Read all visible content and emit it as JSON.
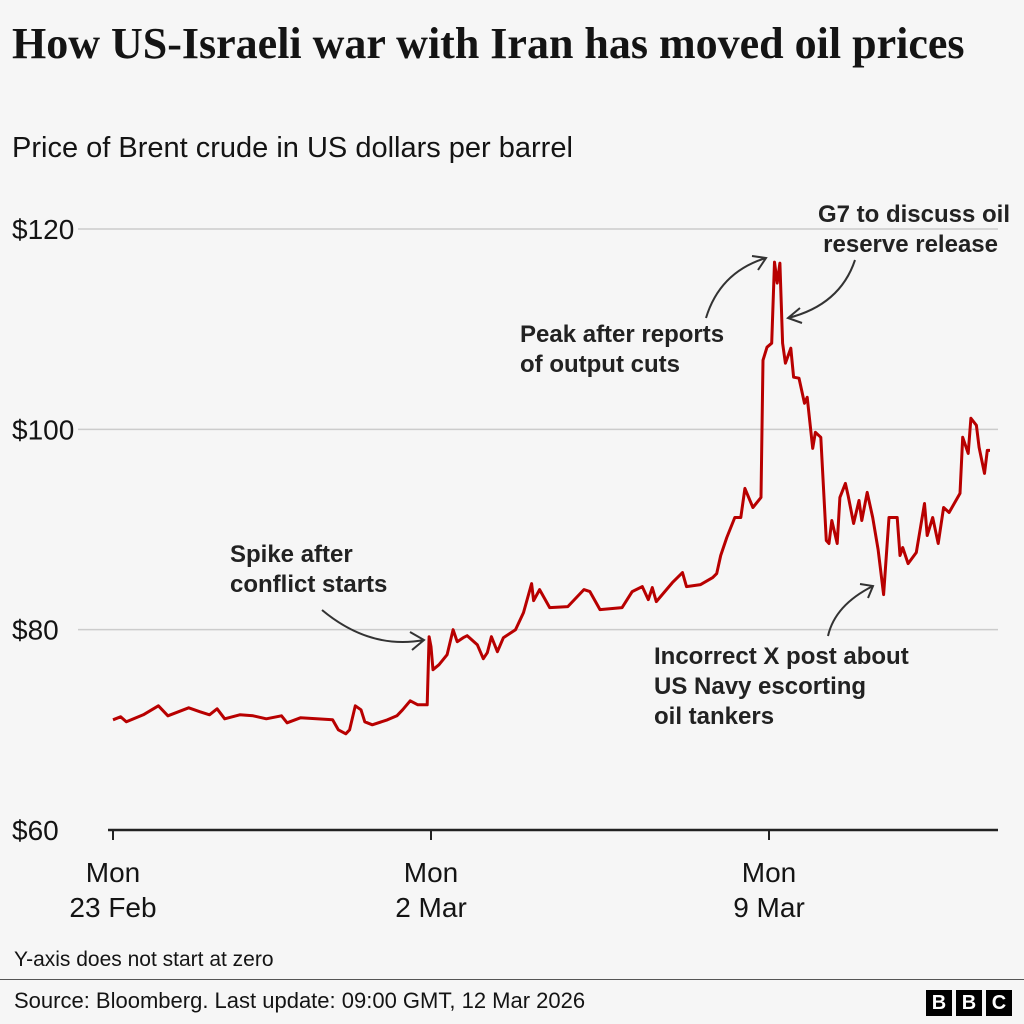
{
  "title": "How US-Israeli war with Iran has moved oil prices",
  "subtitle": "Price of Brent crude in US dollars per barrel",
  "note": "Y-axis does not start at zero",
  "source": "Source: Bloomberg. Last update: 09:00 GMT, 12 Mar 2026",
  "logo": "BBC",
  "colors": {
    "line": "#b80000",
    "grid": "#cccccc",
    "text": "#141414",
    "background": "#f6f6f6"
  },
  "chart_data": {
    "type": "line",
    "title": "How US-Israeli war with Iran has moved oil prices",
    "ylabel": "Price of Brent crude in US dollars per barrel",
    "ylim": [
      60,
      120
    ],
    "grid": true,
    "yticks": [
      {
        "value": 120,
        "label": "$120"
      },
      {
        "value": 100,
        "label": "$100"
      },
      {
        "value": 80,
        "label": "$80"
      },
      {
        "value": 60,
        "label": "$60"
      }
    ],
    "xticks": [
      {
        "date": "2026-02-23T00",
        "line1": "Mon",
        "line2": "23 Feb"
      },
      {
        "date": "2026-03-02T00",
        "line1": "Mon",
        "line2": "2 Mar"
      },
      {
        "date": "2026-03-09T00",
        "line1": "Mon",
        "line2": "9 Mar"
      }
    ],
    "annotations": [
      {
        "lines": [
          "Spike after",
          "conflict starts"
        ]
      },
      {
        "lines": [
          "Peak after reports",
          "of output cuts"
        ]
      },
      {
        "lines": [
          "G7 to discuss oil",
          "reserve release"
        ]
      },
      {
        "lines": [
          "Incorrect X post about",
          "US Navy escorting",
          "oil tankers"
        ]
      }
    ],
    "series": [
      {
        "color": "#b80000",
        "points": [
          [
            "2026-02-23T00",
            71.0
          ],
          [
            "2026-02-23T04",
            71.3
          ],
          [
            "2026-02-23T07",
            70.8
          ],
          [
            "2026-02-23T16",
            71.5
          ],
          [
            "2026-02-24T00",
            72.4
          ],
          [
            "2026-02-24T05",
            71.4
          ],
          [
            "2026-02-24T16",
            72.2
          ],
          [
            "2026-02-24T22",
            71.8
          ],
          [
            "2026-02-25T03",
            71.5
          ],
          [
            "2026-02-25T07",
            72.1
          ],
          [
            "2026-02-25T11",
            71.1
          ],
          [
            "2026-02-25T19",
            71.5
          ],
          [
            "2026-02-26T02",
            71.4
          ],
          [
            "2026-02-26T09",
            71.1
          ],
          [
            "2026-02-26T17",
            71.4
          ],
          [
            "2026-02-26T20",
            70.7
          ],
          [
            "2026-02-27T03",
            71.2
          ],
          [
            "2026-02-27T20",
            71.0
          ],
          [
            "2026-02-27T23",
            70.0
          ],
          [
            "2026-02-28T03",
            69.6
          ],
          [
            "2026-02-28T05",
            70.0
          ],
          [
            "2026-02-28T08",
            72.4
          ],
          [
            "2026-02-28T11",
            72.0
          ],
          [
            "2026-02-28T13",
            70.8
          ],
          [
            "2026-02-28T17",
            70.5
          ],
          [
            "2026-03-01T01",
            71.0
          ],
          [
            "2026-03-01T06",
            71.4
          ],
          [
            "2026-03-01T09",
            72.0
          ],
          [
            "2026-03-01T13",
            72.9
          ],
          [
            "2026-03-01T17",
            72.5
          ],
          [
            "2026-03-01T22",
            72.5
          ],
          [
            "2026-03-01T23",
            79.3
          ],
          [
            "2026-03-02T00",
            78.3
          ],
          [
            "2026-03-02T01",
            76.0
          ],
          [
            "2026-03-02T04",
            76.5
          ],
          [
            "2026-03-02T08",
            77.5
          ],
          [
            "2026-03-02T11",
            80.0
          ],
          [
            "2026-03-02T13",
            78.8
          ],
          [
            "2026-03-02T16",
            79.2
          ],
          [
            "2026-03-02T18",
            79.4
          ],
          [
            "2026-03-02T23",
            78.5
          ],
          [
            "2026-03-03T02",
            77.1
          ],
          [
            "2026-03-03T04",
            77.7
          ],
          [
            "2026-03-03T06",
            79.3
          ],
          [
            "2026-03-03T09",
            77.8
          ],
          [
            "2026-03-03T12",
            79.2
          ],
          [
            "2026-03-03T18",
            80.0
          ],
          [
            "2026-03-03T22",
            81.7
          ],
          [
            "2026-03-04T02",
            84.6
          ],
          [
            "2026-03-04T03",
            82.9
          ],
          [
            "2026-03-04T06",
            84.0
          ],
          [
            "2026-03-04T11",
            82.2
          ],
          [
            "2026-03-04T20",
            82.3
          ],
          [
            "2026-03-05T04",
            84.0
          ],
          [
            "2026-03-05T07",
            83.8
          ],
          [
            "2026-03-05T12",
            82.0
          ],
          [
            "2026-03-05T23",
            82.2
          ],
          [
            "2026-03-06T04",
            83.8
          ],
          [
            "2026-03-06T09",
            84.3
          ],
          [
            "2026-03-06T12",
            83.0
          ],
          [
            "2026-03-06T14",
            84.2
          ],
          [
            "2026-03-06T16",
            82.8
          ],
          [
            "2026-03-07T00",
            84.7
          ],
          [
            "2026-03-07T05",
            85.7
          ],
          [
            "2026-03-07T07",
            84.3
          ],
          [
            "2026-03-07T14",
            84.5
          ],
          [
            "2026-03-07T20",
            85.2
          ],
          [
            "2026-03-07T22",
            85.6
          ],
          [
            "2026-03-08T00",
            87.4
          ],
          [
            "2026-03-08T03",
            89.2
          ],
          [
            "2026-03-08T07",
            91.2
          ],
          [
            "2026-03-08T10",
            91.2
          ],
          [
            "2026-03-08T12",
            94.1
          ],
          [
            "2026-03-08T16",
            92.2
          ],
          [
            "2026-03-08T20",
            93.2
          ],
          [
            "2026-03-08T21",
            106.9
          ],
          [
            "2026-03-08T23",
            108.2
          ],
          [
            "2026-03-09T01",
            108.6
          ],
          [
            "2026-03-09T02",
            116.7
          ],
          [
            "2026-03-09T03",
            114.6
          ],
          [
            "2026-03-09T04",
            116.6
          ],
          [
            "2026-03-09T05",
            108.6
          ],
          [
            "2026-03-09T06",
            106.6
          ],
          [
            "2026-03-09T08",
            108.1
          ],
          [
            "2026-03-09T09",
            105.2
          ],
          [
            "2026-03-09T11",
            105.1
          ],
          [
            "2026-03-09T13",
            102.6
          ],
          [
            "2026-03-09T14",
            103.2
          ],
          [
            "2026-03-09T16",
            98.1
          ],
          [
            "2026-03-09T17",
            99.7
          ],
          [
            "2026-03-09T19",
            99.2
          ],
          [
            "2026-03-09T21",
            88.9
          ],
          [
            "2026-03-09T22",
            88.6
          ],
          [
            "2026-03-09T23",
            90.9
          ],
          [
            "2026-03-10T01",
            88.6
          ],
          [
            "2026-03-10T02",
            93.2
          ],
          [
            "2026-03-10T04",
            94.6
          ],
          [
            "2026-03-10T05",
            93.4
          ],
          [
            "2026-03-10T07",
            90.6
          ],
          [
            "2026-03-10T09",
            92.9
          ],
          [
            "2026-03-10T10",
            90.9
          ],
          [
            "2026-03-10T12",
            93.7
          ],
          [
            "2026-03-10T14",
            91.2
          ],
          [
            "2026-03-10T16",
            88.0
          ],
          [
            "2026-03-10T18",
            83.5
          ],
          [
            "2026-03-10T20",
            91.2
          ],
          [
            "2026-03-10T23",
            91.2
          ],
          [
            "2026-03-11T00",
            87.4
          ],
          [
            "2026-03-11T01",
            88.2
          ],
          [
            "2026-03-11T03",
            86.6
          ],
          [
            "2026-03-11T06",
            87.7
          ],
          [
            "2026-03-11T09",
            92.6
          ],
          [
            "2026-03-11T10",
            89.4
          ],
          [
            "2026-03-11T12",
            91.2
          ],
          [
            "2026-03-11T14",
            88.6
          ],
          [
            "2026-03-11T16",
            92.2
          ],
          [
            "2026-03-11T18",
            91.7
          ],
          [
            "2026-03-11T22",
            93.6
          ],
          [
            "2026-03-11T23",
            99.2
          ],
          [
            "2026-03-12T01",
            97.6
          ],
          [
            "2026-03-12T02",
            101.1
          ],
          [
            "2026-03-12T04",
            100.4
          ],
          [
            "2026-03-12T05",
            98.2
          ],
          [
            "2026-03-12T07",
            95.6
          ],
          [
            "2026-03-12T08",
            97.9
          ],
          [
            "2026-03-12T09",
            97.9
          ]
        ]
      }
    ]
  }
}
